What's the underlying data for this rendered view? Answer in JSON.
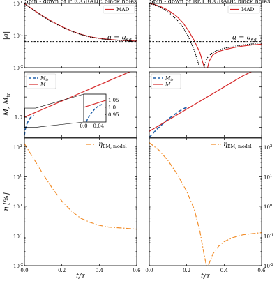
{
  "chart_data": [
    {
      "type": "line",
      "panel": "top-left",
      "title": "Spin - down of PROGRADE black holes",
      "ylabel": "|a|",
      "yscale": "log",
      "xlim": [
        0.0,
        0.6
      ],
      "ylim": [
        0.01,
        1.0
      ],
      "yticks": [
        "10^-2",
        "10^-1",
        "10^0"
      ],
      "legend": {
        "position": "top-right",
        "entries": [
          "MAD"
        ]
      },
      "annotation": "a = a_eq",
      "hline": 0.065,
      "series": [
        {
          "name": "MAD",
          "color": "#d62728",
          "style": "solid",
          "x": [
            0,
            0.05,
            0.1,
            0.15,
            0.2,
            0.25,
            0.3,
            0.35,
            0.4,
            0.45,
            0.5,
            0.55,
            0.6
          ],
          "y": [
            0.99,
            0.62,
            0.4,
            0.27,
            0.19,
            0.14,
            0.11,
            0.092,
            0.082,
            0.076,
            0.072,
            0.069,
            0.067
          ]
        },
        {
          "color": "#000000",
          "style": "dotted",
          "x": [
            0,
            0.05,
            0.1,
            0.15,
            0.2,
            0.25,
            0.3,
            0.35,
            0.4,
            0.45,
            0.5,
            0.55,
            0.6
          ],
          "y": [
            0.99,
            0.61,
            0.39,
            0.26,
            0.185,
            0.138,
            0.108,
            0.09,
            0.08,
            0.074,
            0.071,
            0.068,
            0.066
          ]
        }
      ]
    },
    {
      "type": "line",
      "panel": "top-right",
      "title": "Spin - down of RETROGRADE black holes",
      "yscale": "log",
      "xlim": [
        0.0,
        0.6
      ],
      "ylim": [
        0.01,
        1.0
      ],
      "legend": {
        "position": "top-right",
        "entries": [
          "MAD"
        ]
      },
      "annotation": "a = a_eq",
      "hline": 0.065,
      "series": [
        {
          "name": "MAD",
          "color": "#d62728",
          "style": "solid",
          "x": [
            0,
            0.03,
            0.06,
            0.09,
            0.12,
            0.15,
            0.18,
            0.21,
            0.24,
            0.27,
            0.29,
            0.305,
            0.32,
            0.34,
            0.37,
            0.4,
            0.45,
            0.5,
            0.55,
            0.6
          ],
          "y": [
            0.99,
            0.92,
            0.8,
            0.66,
            0.52,
            0.38,
            0.25,
            0.14,
            0.07,
            0.03,
            0.012,
            0.007,
            0.016,
            0.025,
            0.032,
            0.036,
            0.042,
            0.047,
            0.051,
            0.054
          ]
        },
        {
          "color": "#000000",
          "style": "dotted",
          "x": [
            0,
            0.03,
            0.06,
            0.09,
            0.12,
            0.15,
            0.18,
            0.21,
            0.24,
            0.265,
            0.28,
            0.295,
            0.31,
            0.33,
            0.36,
            0.4,
            0.45,
            0.5,
            0.55,
            0.6
          ],
          "y": [
            0.99,
            0.9,
            0.76,
            0.6,
            0.44,
            0.3,
            0.18,
            0.09,
            0.035,
            0.012,
            0.006,
            0.012,
            0.02,
            0.027,
            0.034,
            0.04,
            0.046,
            0.051,
            0.055,
            0.058
          ]
        }
      ]
    },
    {
      "type": "line",
      "panel": "mid-left",
      "ylabel": "M, M_tr",
      "xlim": [
        0.0,
        0.6
      ],
      "ylim": [
        0.8,
        1.45
      ],
      "yticks": [
        1.0
      ],
      "legend": {
        "position": "top-left",
        "entries": [
          "M_tr",
          "M"
        ]
      },
      "series": [
        {
          "name": "M_tr",
          "color": "#1f5fa8",
          "style": "dashed",
          "x": [
            0,
            0.005,
            0.01,
            0.02,
            0.03,
            0.04,
            0.05
          ],
          "y": [
            0.82,
            0.88,
            0.92,
            0.96,
            0.99,
            1.01,
            1.02
          ]
        },
        {
          "name": "M",
          "color": "#d62728",
          "style": "solid",
          "x": [
            0,
            0.1,
            0.2,
            0.3,
            0.4,
            0.5,
            0.6
          ],
          "y": [
            1.0,
            1.08,
            1.16,
            1.24,
            1.32,
            1.4,
            1.48
          ]
        }
      ],
      "inset": {
        "xlim": [
          0.0,
          0.06
        ],
        "ylim": [
          0.9,
          1.09
        ],
        "xticks": [
          "0.0",
          "0.04"
        ],
        "yticks": [
          "0.95",
          "1.0",
          "1.05"
        ]
      }
    },
    {
      "type": "line",
      "panel": "mid-right",
      "xlim": [
        0.0,
        0.6
      ],
      "ylim": [
        0.8,
        1.45
      ],
      "legend": {
        "position": "top-left",
        "entries": [
          "M_tr",
          "M"
        ]
      },
      "series": [
        {
          "name": "M_tr",
          "color": "#1f5fa8",
          "style": "dashed",
          "x": [
            0,
            0.02,
            0.04,
            0.07,
            0.1,
            0.13,
            0.16,
            0.19,
            0.21
          ],
          "y": [
            0.8,
            0.84,
            0.88,
            0.93,
            0.98,
            1.02,
            1.06,
            1.09,
            1.1
          ]
        },
        {
          "name": "M",
          "color": "#d62728",
          "style": "solid",
          "x": [
            0,
            0.1,
            0.2,
            0.3,
            0.4,
            0.5,
            0.6
          ],
          "y": [
            0.86,
            0.97,
            1.08,
            1.19,
            1.3,
            1.41,
            1.5
          ]
        }
      ]
    },
    {
      "type": "line",
      "panel": "bottom-left",
      "ylabel": "η [%]",
      "xlabel": "t/τ",
      "yscale": "log",
      "xlim": [
        0.0,
        0.6
      ],
      "ylim": [
        0.01,
        200
      ],
      "xticks": [
        "0.0",
        "0.2",
        "0.4",
        "0.6"
      ],
      "yticks": [
        "10^-2",
        "10^-1",
        "10^0",
        "10^1",
        "10^2"
      ],
      "legend": {
        "position": "top-right",
        "entries": [
          "η_EM,model"
        ]
      },
      "series": [
        {
          "name": "η_EM,model",
          "color": "#f28e2b",
          "style": "dashdot",
          "x": [
            0,
            0.02,
            0.05,
            0.1,
            0.15,
            0.2,
            0.25,
            0.3,
            0.35,
            0.4,
            0.45,
            0.5,
            0.55,
            0.6
          ],
          "y": [
            130,
            80,
            40,
            12,
            4,
            1.5,
            0.7,
            0.4,
            0.29,
            0.23,
            0.2,
            0.19,
            0.18,
            0.17
          ]
        }
      ]
    },
    {
      "type": "line",
      "panel": "bottom-right",
      "xlabel": "t/τ",
      "yscale": "log",
      "xlim": [
        0.0,
        0.6
      ],
      "ylim": [
        0.01,
        200
      ],
      "xticks": [
        "0.0",
        "0.2",
        "0.4",
        "0.6"
      ],
      "yticks": [
        "10^-2",
        "10^-1",
        "10^0",
        "10^1",
        "10^2"
      ],
      "legend": {
        "position": "top-right",
        "entries": [
          "η_EM,model"
        ]
      },
      "series": [
        {
          "name": "η_EM,model",
          "color": "#f28e2b",
          "style": "dashdot",
          "x": [
            0,
            0.05,
            0.1,
            0.15,
            0.2,
            0.24,
            0.27,
            0.29,
            0.305,
            0.32,
            0.34,
            0.37,
            0.4,
            0.45,
            0.5,
            0.55,
            0.6
          ],
          "y": [
            140,
            80,
            35,
            12,
            3.2,
            0.8,
            0.15,
            0.03,
            0.01,
            0.012,
            0.025,
            0.045,
            0.065,
            0.09,
            0.11,
            0.12,
            0.13
          ]
        }
      ]
    }
  ]
}
